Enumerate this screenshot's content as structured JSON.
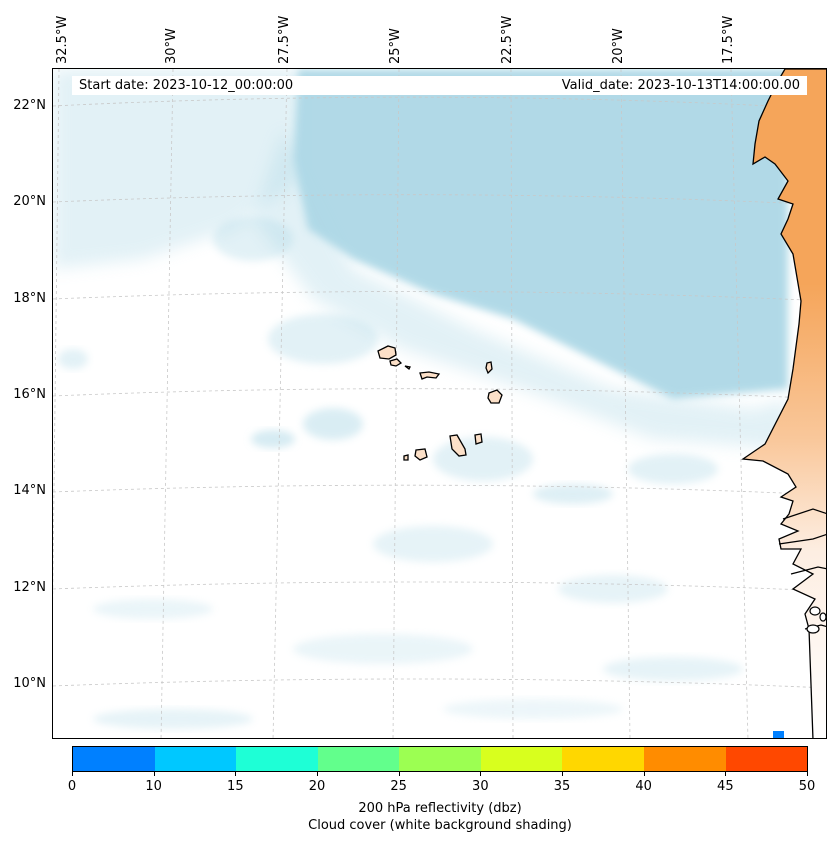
{
  "header": {
    "start_date": "Start date: 2023-10-12_00:00:00",
    "valid_date": "Valid_date: 2023-10-13T14:00:00.00"
  },
  "axes": {
    "longitude_labels": [
      "32.5°W",
      "30°W",
      "27.5°W",
      "25°W",
      "22.5°W",
      "20°W",
      "17.5°W"
    ],
    "latitude_labels": [
      "22°N",
      "20°N",
      "18°N",
      "16°N",
      "14°N",
      "12°N",
      "10°N"
    ]
  },
  "colorbar": {
    "ticks": [
      "0",
      "10",
      "15",
      "20",
      "25",
      "30",
      "35",
      "40",
      "45",
      "50"
    ],
    "colors": [
      "#0080ff",
      "#00c8ff",
      "#1effd6",
      "#62ff8c",
      "#9cff52",
      "#d8ff1e",
      "#ffd700",
      "#ff8c00",
      "#ff4800"
    ],
    "label": "200 hPa reflectivity (dbz)",
    "sublabel": "Cloud cover (white background shading)"
  },
  "map_colors": {
    "cloud_cover": "#add8e6",
    "land": "#f5a55a",
    "land_light": "#fce0c8",
    "coastline": "#000000",
    "gridline": "#c8c8c8"
  }
}
